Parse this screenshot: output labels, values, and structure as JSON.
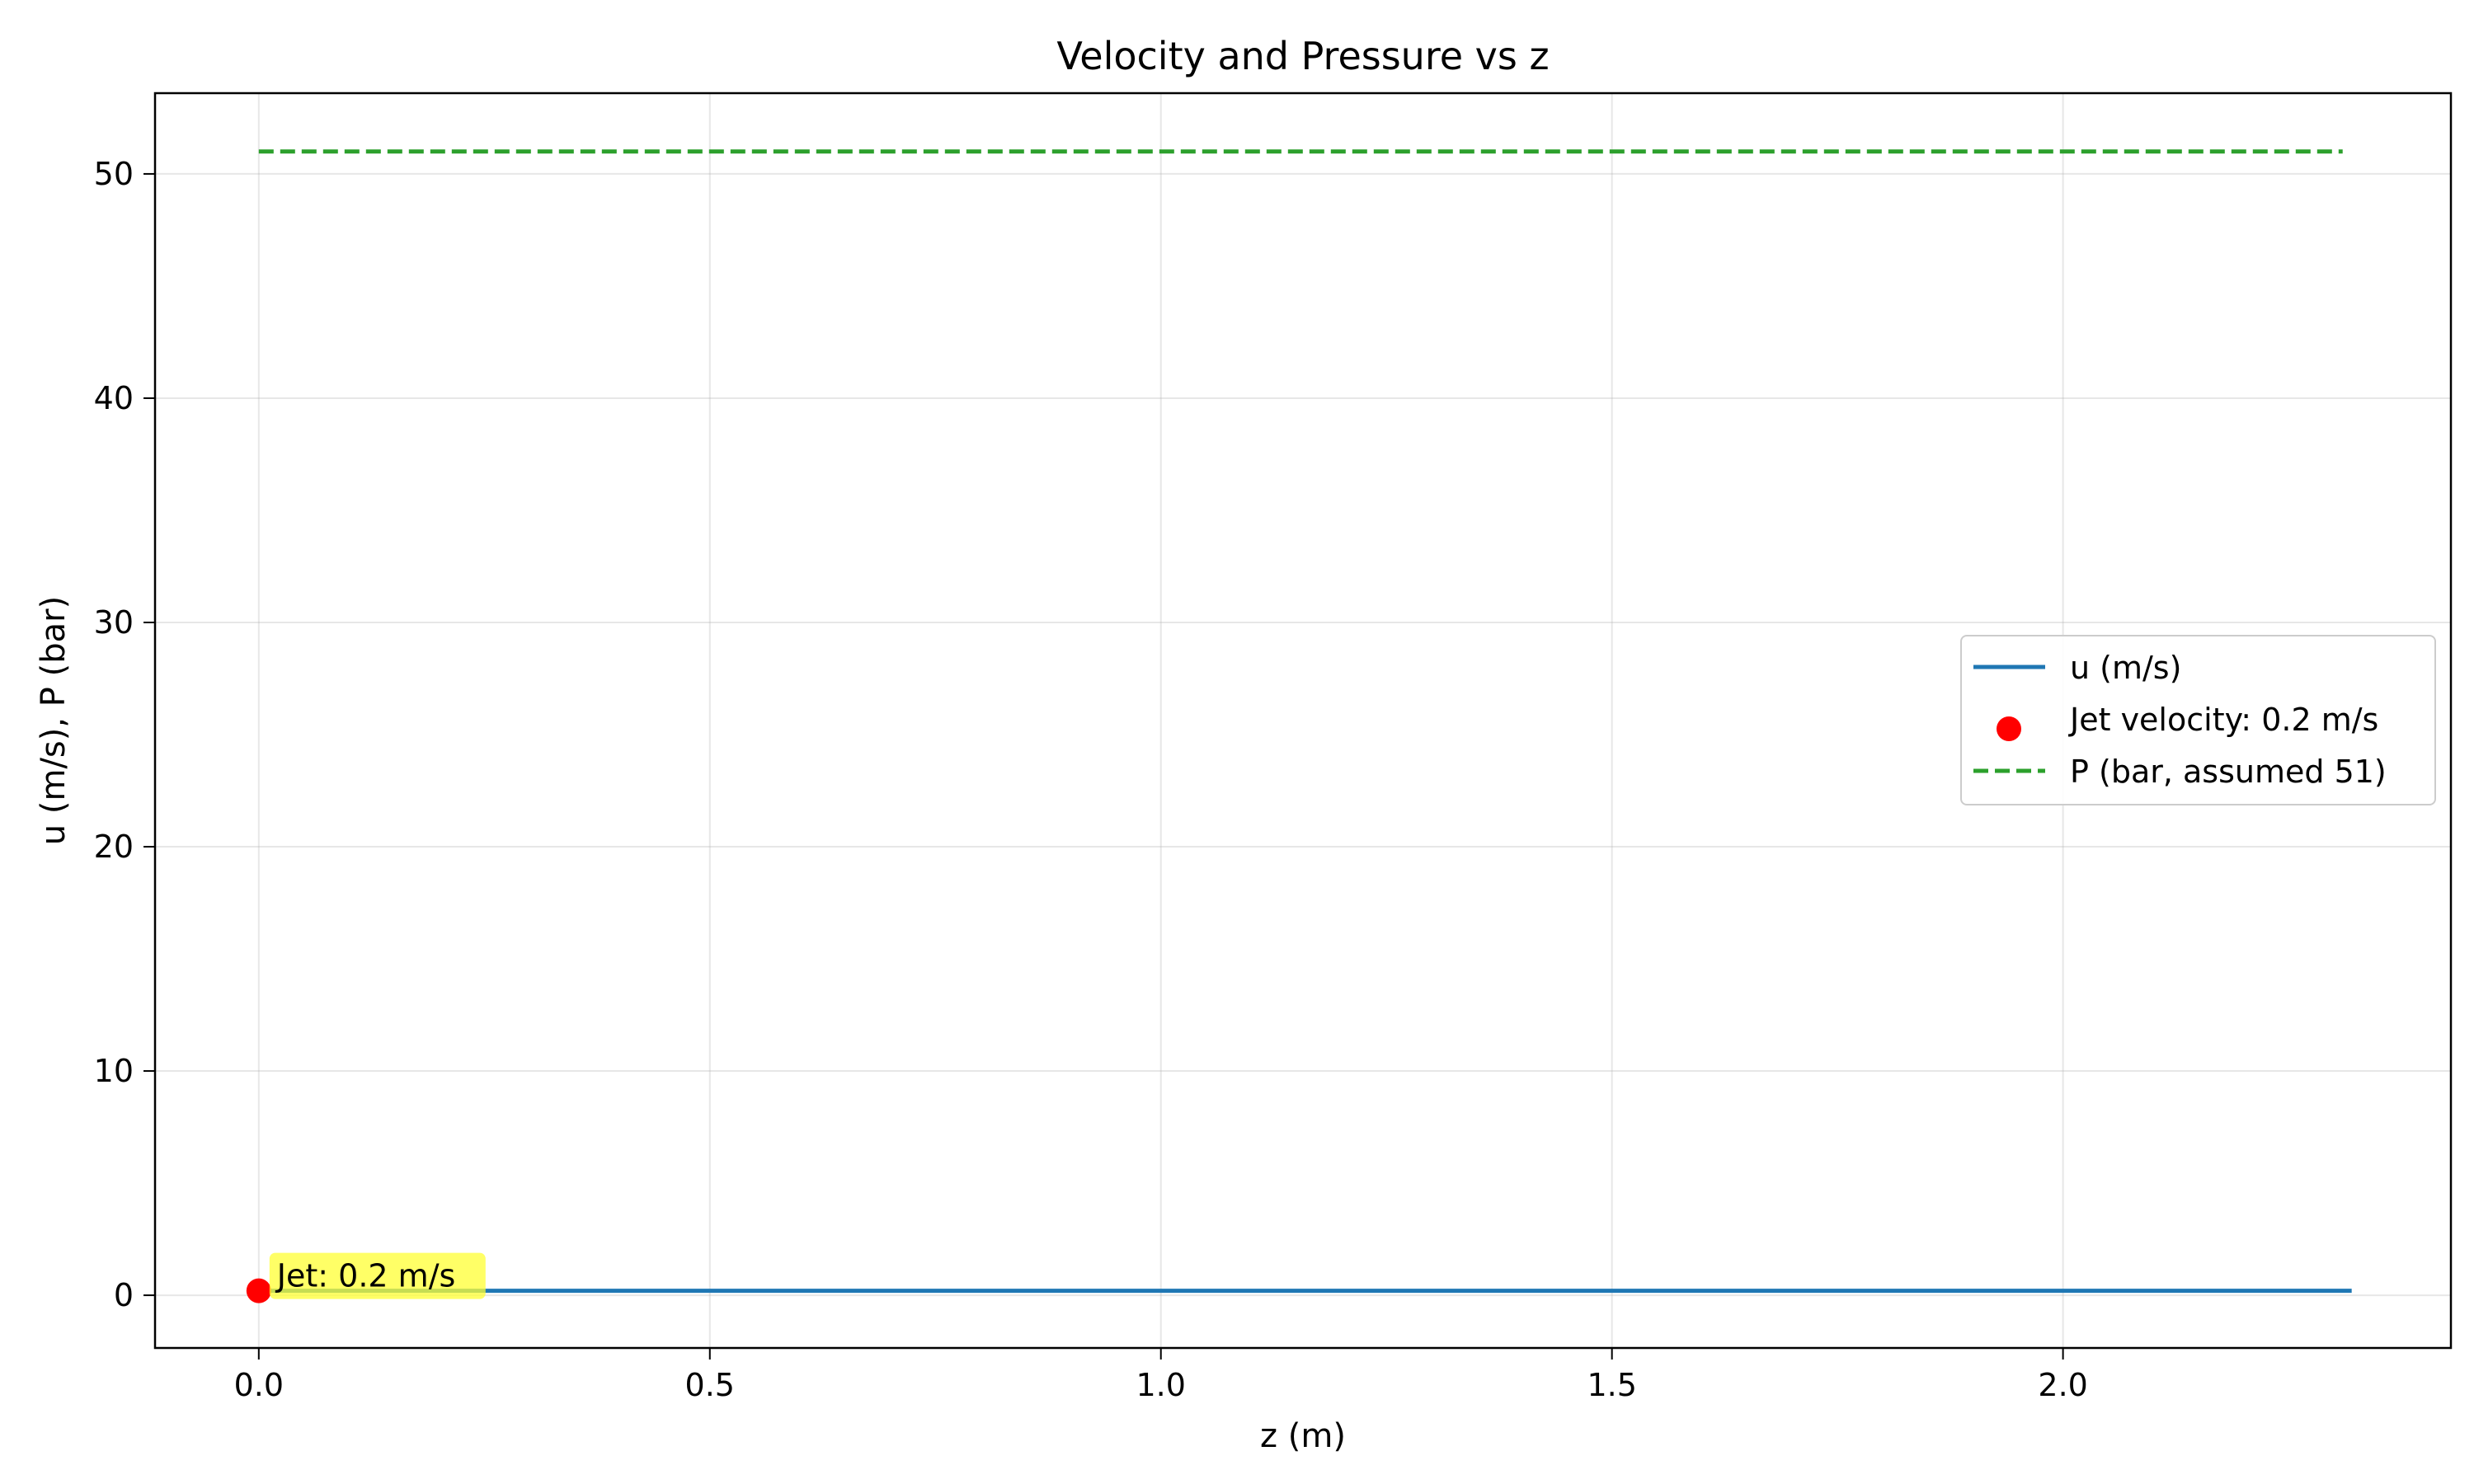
{
  "chart_data": {
    "type": "line",
    "title": "Velocity and Pressure vs z",
    "xlabel": "z (m)",
    "ylabel": "u (m/s), P (bar)",
    "xlim": [
      -0.115,
      2.43
    ],
    "ylim": [
      -2.35,
      53.6
    ],
    "xticks": [
      0.0,
      0.5,
      1.0,
      1.5,
      2.0
    ],
    "xtick_labels": [
      "0.0",
      "0.5",
      "1.0",
      "1.5",
      "2.0"
    ],
    "yticks": [
      0,
      10,
      20,
      30,
      40,
      50
    ],
    "ytick_labels": [
      "0",
      "10",
      "20",
      "30",
      "40",
      "50"
    ],
    "grid": true,
    "legend_position": "center-right",
    "series": [
      {
        "name": "u (m/s)",
        "kind": "line",
        "style": "solid",
        "color": "#1f77b4",
        "x": [
          0.0,
          2.32
        ],
        "y": [
          0.2,
          0.2
        ]
      },
      {
        "name": "Jet velocity: 0.2 m/s",
        "kind": "scatter",
        "color": "#ff0000",
        "x": [
          0.0
        ],
        "y": [
          0.2
        ]
      },
      {
        "name": "P (bar, assumed 51)",
        "kind": "line",
        "style": "dashed",
        "color": "#2ca02c",
        "x": [
          0.0,
          2.31
        ],
        "y": [
          51,
          51
        ]
      }
    ],
    "annotations": [
      {
        "text": "Jet: 0.2 m/s",
        "x": 0.0,
        "y": 0.2,
        "background": "#ffff33"
      }
    ]
  }
}
